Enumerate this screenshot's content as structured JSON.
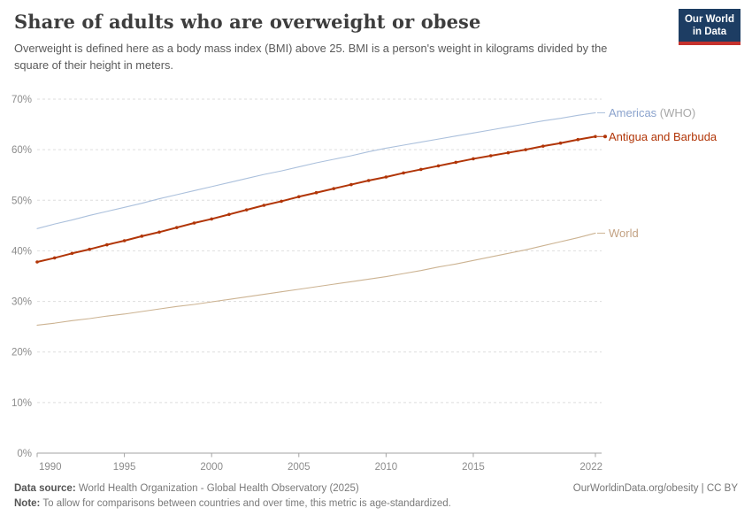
{
  "header": {
    "title": "Share of adults who are overweight or obese",
    "subtitle": "Overweight is defined here as a body mass index (BMI) above 25. BMI is a person's weight in kilograms divided by the square of their height in meters.",
    "logo": {
      "line1": "Our World",
      "line2": "in Data",
      "bg_color": "#1d3d63",
      "accent_color": "#c5322d"
    }
  },
  "chart_data": {
    "type": "line",
    "title": "Share of adults who are overweight or obese",
    "unit": "%",
    "xlim": [
      1990,
      2022
    ],
    "ylim": [
      0,
      70
    ],
    "grid": "horizontal dashed",
    "legend_position": "labels at right end of lines",
    "x_ticks": [
      1990,
      1995,
      2000,
      2005,
      2010,
      2015,
      2022
    ],
    "y_ticks": [
      0,
      10,
      20,
      30,
      40,
      50,
      60,
      70
    ],
    "y_tick_suffix": "%",
    "x": [
      1990,
      1991,
      1992,
      1993,
      1994,
      1995,
      1996,
      1997,
      1998,
      1999,
      2000,
      2001,
      2002,
      2003,
      2004,
      2005,
      2006,
      2007,
      2008,
      2009,
      2010,
      2011,
      2012,
      2013,
      2014,
      2015,
      2016,
      2017,
      2018,
      2019,
      2020,
      2021,
      2022
    ],
    "series": [
      {
        "id": "americas-who",
        "name": "Americas (WHO)",
        "color": "#abc0dc",
        "line_width": 1.1,
        "markers": false,
        "label_parts": [
          {
            "text": "Americas",
            "color": "#8ba3cd"
          },
          {
            "text": " (WHO)",
            "color": "#a8a8a8"
          }
        ],
        "values": [
          44.4,
          45.3,
          46.1,
          47.0,
          47.8,
          48.6,
          49.4,
          50.3,
          51.1,
          51.9,
          52.7,
          53.5,
          54.3,
          55.1,
          55.8,
          56.6,
          57.4,
          58.1,
          58.8,
          59.6,
          60.3,
          60.9,
          61.5,
          62.1,
          62.7,
          63.3,
          63.9,
          64.5,
          65.1,
          65.7,
          66.2,
          66.8,
          67.3
        ]
      },
      {
        "id": "antigua-and-barbuda",
        "name": "Antigua and Barbuda",
        "color": "#b13507",
        "line_width": 2,
        "markers": true,
        "label_parts": [
          {
            "text": "Antigua and Barbuda",
            "color": "#b13507"
          }
        ],
        "values": [
          37.8,
          38.6,
          39.5,
          40.3,
          41.2,
          42.0,
          42.9,
          43.7,
          44.6,
          45.5,
          46.3,
          47.2,
          48.1,
          49.0,
          49.8,
          50.7,
          51.5,
          52.3,
          53.1,
          53.9,
          54.6,
          55.4,
          56.1,
          56.8,
          57.5,
          58.2,
          58.8,
          59.4,
          60.0,
          60.7,
          61.3,
          62.0,
          62.6
        ]
      },
      {
        "id": "world",
        "name": "World",
        "color": "#ccb392",
        "line_width": 1.1,
        "markers": false,
        "label_parts": [
          {
            "text": "World",
            "color": "#c3a283"
          }
        ],
        "values": [
          25.3,
          25.7,
          26.2,
          26.6,
          27.1,
          27.5,
          28.0,
          28.5,
          29.0,
          29.4,
          29.9,
          30.4,
          30.9,
          31.4,
          31.9,
          32.4,
          32.9,
          33.4,
          33.9,
          34.4,
          34.9,
          35.5,
          36.1,
          36.8,
          37.4,
          38.1,
          38.8,
          39.5,
          40.2,
          41.0,
          41.8,
          42.6,
          43.5
        ]
      }
    ],
    "axis_colors": {
      "grid": "#dedede",
      "axis_line": "#a3a3a3",
      "tick_label": "#8c8c8c"
    }
  },
  "footer": {
    "datasource_label": "Data source:",
    "datasource_text": " World Health Organization - Global Health Observatory (2025)",
    "link": "OurWorldinData.org/obesity | CC BY",
    "note_label": "Note:",
    "note_text": " To allow for comparisons between countries and over time, this metric is age-standardized."
  }
}
